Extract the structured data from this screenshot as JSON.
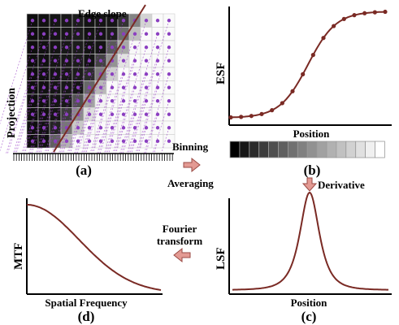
{
  "colors": {
    "curve": "#7a2a24",
    "marker": "#7a2a24",
    "arrow_fill": "#e39a93",
    "arrow_stroke": "#9a4a44",
    "dot": "#8a3fc0",
    "projection": "#9a44c8",
    "grid_line": "#cfcfcf"
  },
  "panel_a": {
    "title": "Edge slope",
    "side_label": "Projection",
    "caption": "(a)",
    "grid_rows": 10,
    "grid_cols": 13
  },
  "panel_b": {
    "ylabel": "ESF",
    "xlabel": "Position",
    "caption": "(b)",
    "markers": 16
  },
  "panel_c": {
    "ylabel": "LSF",
    "xlabel": "Position",
    "caption": "(c)"
  },
  "panel_d": {
    "ylabel": "MTF",
    "xlabel": "Spatial Frequency",
    "caption": "(d)"
  },
  "strip": {
    "count": 16
  },
  "steps": {
    "binning": "Binning",
    "averaging": "Averaging",
    "derivative": "Derivative",
    "fourier_line1": "Fourier",
    "fourier_line2": "transform"
  }
}
